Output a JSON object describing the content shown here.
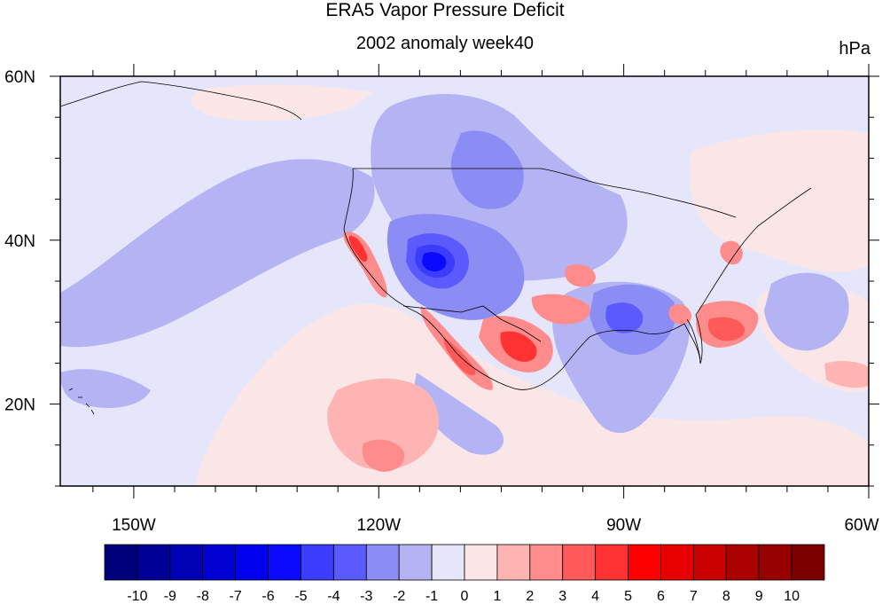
{
  "title": "ERA5 Vapor Pressure Deficit",
  "subtitle": "2002 anomaly week40",
  "units": "hPa",
  "map": {
    "lon_range": [
      -159,
      -60
    ],
    "lat_range": [
      10,
      60
    ],
    "lon_ticks": [
      {
        "value": -150,
        "label": "150W"
      },
      {
        "value": -120,
        "label": "120W"
      },
      {
        "value": -90,
        "label": "90W"
      },
      {
        "value": -60,
        "label": "60W"
      }
    ],
    "lat_ticks": [
      {
        "value": 60,
        "label": "60N"
      },
      {
        "value": 40,
        "label": "40N"
      },
      {
        "value": 20,
        "label": "20N"
      }
    ]
  },
  "colorbar": {
    "levels": [
      "-10",
      "-9",
      "-8",
      "-7",
      "-6",
      "-5",
      "-4",
      "-3",
      "-2",
      "-1",
      "0",
      "1",
      "2",
      "3",
      "4",
      "5",
      "6",
      "7",
      "8",
      "9",
      "10"
    ],
    "colors": [
      "#00007a",
      "#000096",
      "#0000b4",
      "#0000d2",
      "#0000ee",
      "#0a0aff",
      "#3c3cff",
      "#5a5aff",
      "#8c8cf5",
      "#b4b4f5",
      "#e6e6fa",
      "#fae6e6",
      "#ffb4b4",
      "#ff8c8c",
      "#ff5a5a",
      "#ff3232",
      "#ff0000",
      "#e60000",
      "#c80000",
      "#aa0000",
      "#960000",
      "#7a0000"
    ]
  }
}
